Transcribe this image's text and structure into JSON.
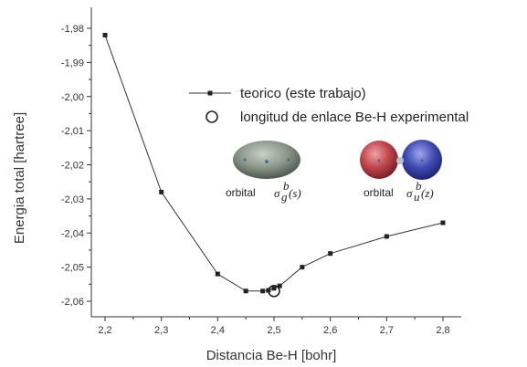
{
  "chart_data": {
    "type": "line",
    "xlabel": "Distancia Be-H [bohr]",
    "ylabel": "Energia total [hartree]",
    "xlim": [
      2.2,
      2.8
    ],
    "ylim": [
      -2.06,
      -1.98
    ],
    "x_ticks": [
      2.2,
      2.3,
      2.4,
      2.5,
      2.6,
      2.7,
      2.8
    ],
    "x_tick_labels": [
      "2,2",
      "2,3",
      "2,4",
      "2,5",
      "2,6",
      "2,7",
      "2,8"
    ],
    "y_ticks": [
      -1.98,
      -1.99,
      -2.0,
      -2.01,
      -2.02,
      -2.03,
      -2.04,
      -2.05,
      -2.06
    ],
    "y_tick_labels": [
      "-1,98",
      "-1,99",
      "-2,00",
      "-2,01",
      "-2,02",
      "-2,03",
      "-2,04",
      "-2,05",
      "-2,06"
    ],
    "grid": false,
    "legend_position": "top-right",
    "series": [
      {
        "name": "teorico (este trabajo)",
        "marker": "square",
        "x": [
          2.2,
          2.3,
          2.4,
          2.45,
          2.48,
          2.49,
          2.5,
          2.51,
          2.55,
          2.6,
          2.7,
          2.8
        ],
        "y": [
          -1.982,
          -2.028,
          -2.052,
          -2.057,
          -2.057,
          -2.0568,
          -2.0562,
          -2.0555,
          -2.05,
          -2.046,
          -2.041,
          -2.037
        ]
      },
      {
        "name": "longitud de enlace Be-H experimental",
        "marker": "open-circle",
        "x": [
          2.5
        ],
        "y": [
          -2.057
        ]
      }
    ],
    "annotations": [
      {
        "label": "orbital",
        "symbol": "σ",
        "sub": "g",
        "sup": "b",
        "arg": "(s)"
      },
      {
        "label": "orbital",
        "symbol": "σ",
        "sub": "u",
        "sup": "b",
        "arg": "(z)"
      }
    ]
  },
  "colors": {
    "line": "#333333",
    "sigma_g_orbital": "#8a978a",
    "sigma_u_red_lobe": "#c0454d",
    "sigma_u_blue_lobe": "#3e4bb0"
  }
}
